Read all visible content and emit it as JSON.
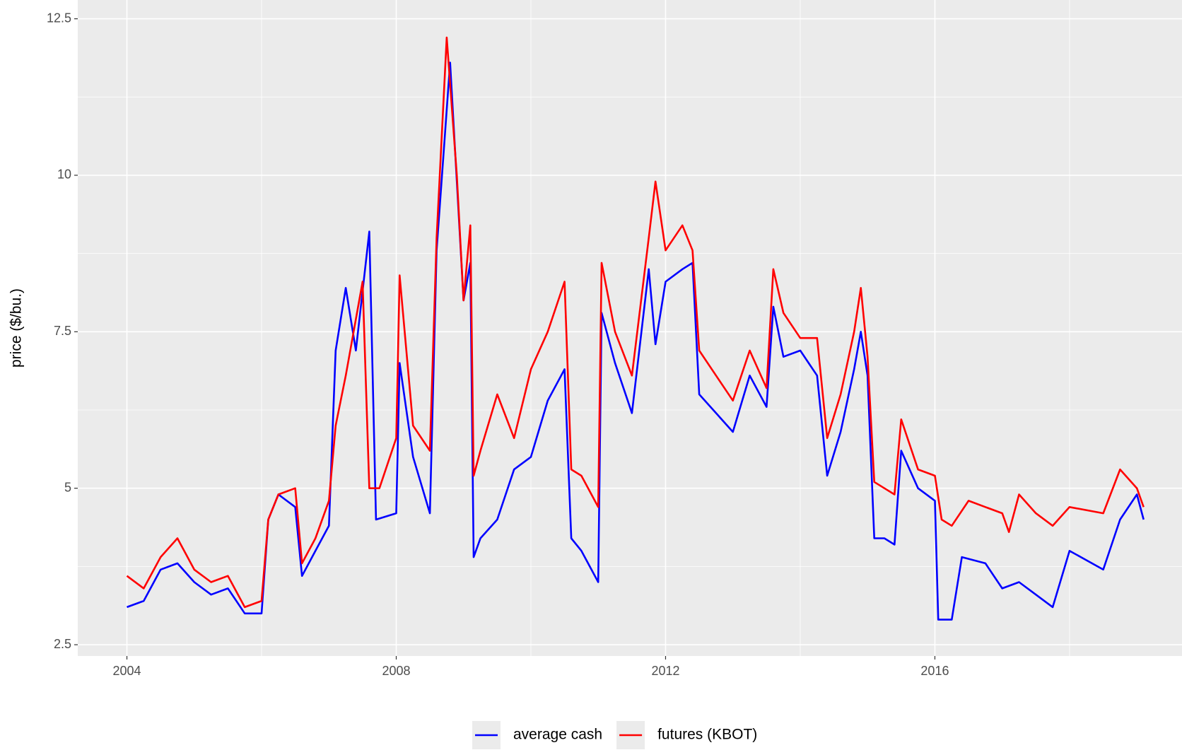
{
  "chart_data": {
    "type": "line",
    "y_label": "price ($/bu.)",
    "xlim": [
      2003.27,
      2019.67
    ],
    "xticks": [
      2004,
      2008,
      2012,
      2016
    ],
    "ylim": [
      2.32,
      12.8
    ],
    "yticks": [
      2.5,
      5.0,
      7.5,
      10.0,
      12.5
    ],
    "grid": true,
    "legend": "bottom",
    "series": [
      {
        "name": "average cash",
        "color": "#0000ff",
        "x": [
          2004.0,
          2004.25,
          2004.5,
          2004.75,
          2005.0,
          2005.25,
          2005.5,
          2005.75,
          2006.0,
          2006.1,
          2006.25,
          2006.5,
          2006.6,
          2006.8,
          2007.0,
          2007.1,
          2007.25,
          2007.4,
          2007.6,
          2007.7,
          2008.0,
          2008.05,
          2008.25,
          2008.5,
          2008.6,
          2008.8,
          2009.0,
          2009.1,
          2009.15,
          2009.25,
          2009.5,
          2009.75,
          2010.0,
          2010.25,
          2010.5,
          2010.6,
          2010.75,
          2011.0,
          2011.05,
          2011.25,
          2011.5,
          2011.75,
          2011.85,
          2012.0,
          2012.25,
          2012.4,
          2012.5,
          2012.75,
          2013.0,
          2013.25,
          2013.5,
          2013.6,
          2013.75,
          2014.0,
          2014.25,
          2014.4,
          2014.6,
          2014.8,
          2014.9,
          2015.0,
          2015.1,
          2015.25,
          2015.4,
          2015.5,
          2015.75,
          2016.0,
          2016.05,
          2016.25,
          2016.4,
          2016.75,
          2017.0,
          2017.25,
          2017.5,
          2017.75,
          2018.0,
          2018.5,
          2018.75,
          2019.0,
          2019.1
        ],
        "values": [
          3.1,
          3.2,
          3.7,
          3.8,
          3.5,
          3.3,
          3.4,
          3.0,
          3.0,
          4.5,
          4.9,
          4.7,
          3.6,
          4.0,
          4.4,
          7.2,
          8.2,
          7.2,
          9.1,
          4.5,
          4.6,
          7.0,
          5.5,
          4.6,
          8.8,
          11.8,
          8.0,
          8.6,
          3.9,
          4.2,
          4.5,
          5.3,
          5.5,
          6.4,
          6.9,
          4.2,
          4.0,
          3.5,
          7.8,
          7.0,
          6.2,
          8.5,
          7.3,
          8.3,
          8.5,
          8.6,
          6.5,
          6.2,
          5.9,
          6.8,
          6.3,
          7.9,
          7.1,
          7.2,
          6.8,
          5.2,
          5.9,
          6.9,
          7.5,
          6.8,
          4.2,
          4.2,
          4.1,
          5.6,
          5.0,
          4.8,
          2.9,
          2.9,
          3.9,
          3.8,
          3.4,
          3.5,
          3.3,
          3.1,
          4.0,
          3.7,
          4.5,
          4.9,
          4.5
        ]
      },
      {
        "name": "futures (KBOT)",
        "color": "#ff0000",
        "x": [
          2004.0,
          2004.25,
          2004.5,
          2004.75,
          2005.0,
          2005.25,
          2005.5,
          2005.75,
          2006.0,
          2006.1,
          2006.25,
          2006.5,
          2006.6,
          2006.8,
          2007.0,
          2007.1,
          2007.25,
          2007.5,
          2007.6,
          2007.75,
          2008.0,
          2008.05,
          2008.25,
          2008.5,
          2008.6,
          2008.75,
          2008.9,
          2009.0,
          2009.1,
          2009.15,
          2009.25,
          2009.5,
          2009.75,
          2010.0,
          2010.25,
          2010.5,
          2010.6,
          2010.75,
          2011.0,
          2011.05,
          2011.25,
          2011.5,
          2011.75,
          2011.85,
          2012.0,
          2012.25,
          2012.4,
          2012.5,
          2012.75,
          2013.0,
          2013.25,
          2013.5,
          2013.6,
          2013.75,
          2014.0,
          2014.25,
          2014.4,
          2014.6,
          2014.8,
          2014.9,
          2015.0,
          2015.1,
          2015.25,
          2015.4,
          2015.5,
          2015.75,
          2016.0,
          2016.1,
          2016.25,
          2016.5,
          2016.75,
          2017.0,
          2017.1,
          2017.25,
          2017.5,
          2017.75,
          2018.0,
          2018.5,
          2018.75,
          2019.0,
          2019.1
        ],
        "values": [
          3.6,
          3.4,
          3.9,
          4.2,
          3.7,
          3.5,
          3.6,
          3.1,
          3.2,
          4.5,
          4.9,
          5.0,
          3.8,
          4.2,
          4.8,
          6.0,
          6.8,
          8.3,
          5.0,
          5.0,
          5.8,
          8.4,
          6.0,
          5.6,
          9.0,
          12.2,
          10.0,
          8.0,
          9.2,
          5.2,
          5.6,
          6.5,
          5.8,
          6.9,
          7.5,
          8.3,
          5.3,
          5.2,
          4.7,
          8.6,
          7.5,
          6.8,
          9.0,
          9.9,
          8.8,
          9.2,
          8.8,
          7.2,
          6.8,
          6.4,
          7.2,
          6.6,
          8.5,
          7.8,
          7.4,
          7.4,
          5.8,
          6.5,
          7.5,
          8.2,
          7.1,
          5.1,
          5.0,
          4.9,
          6.1,
          5.3,
          5.2,
          4.5,
          4.4,
          4.8,
          4.7,
          4.6,
          4.3,
          4.9,
          4.6,
          4.4,
          4.7,
          4.6,
          5.3,
          5.0,
          4.7
        ]
      }
    ]
  }
}
